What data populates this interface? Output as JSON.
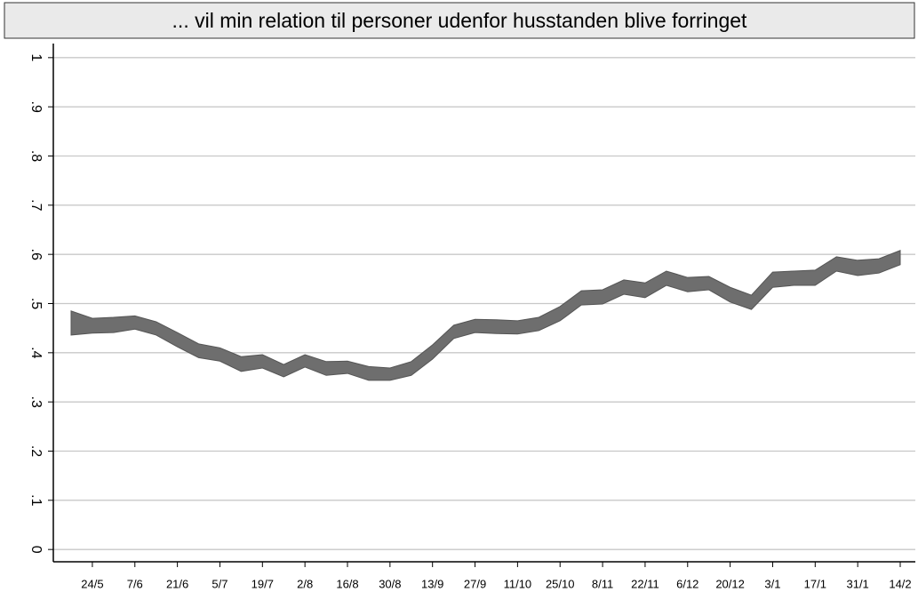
{
  "chart_data": {
    "type": "band",
    "title": "... vil min relation til personer udenfor husstanden blive forringet",
    "categories": [
      null,
      "24/5",
      null,
      "7/6",
      null,
      "21/6",
      null,
      "5/7",
      null,
      "19/7",
      null,
      "2/8",
      null,
      "16/8",
      null,
      "30/8",
      null,
      "13/9",
      null,
      "27/9",
      null,
      "11/10",
      null,
      "25/10",
      null,
      "8/11",
      null,
      "22/11",
      null,
      "6/12",
      null,
      "20/12",
      null,
      "3/1",
      null,
      "17/1",
      null,
      "31/1",
      null,
      "14/2"
    ],
    "series": [
      {
        "color": "#6e6e6e",
        "values": [
          0.436,
          0.44,
          0.441,
          0.448,
          0.436,
          0.412,
          0.39,
          0.383,
          0.362,
          0.369,
          0.351,
          0.371,
          0.354,
          0.358,
          0.344,
          0.344,
          0.354,
          0.387,
          0.429,
          0.441,
          0.439,
          0.438,
          0.445,
          0.465,
          0.497,
          0.499,
          0.519,
          0.512,
          0.537,
          0.524,
          0.528,
          0.503,
          0.488,
          0.533,
          0.537,
          0.537,
          0.566,
          0.557,
          0.562,
          0.579
        ]
      },
      {
        "color": "#6e6e6e",
        "values": [
          0.485,
          0.47,
          0.472,
          0.475,
          0.463,
          0.441,
          0.418,
          0.41,
          0.392,
          0.396,
          0.376,
          0.396,
          0.382,
          0.383,
          0.372,
          0.369,
          0.382,
          0.416,
          0.456,
          0.468,
          0.467,
          0.465,
          0.472,
          0.494,
          0.526,
          0.528,
          0.548,
          0.542,
          0.566,
          0.553,
          0.555,
          0.533,
          0.517,
          0.564,
          0.566,
          0.568,
          0.595,
          0.588,
          0.591,
          0.608
        ]
      }
    ],
    "ylim": [
      -0.025,
      1.025
    ],
    "yticks": [
      {
        "value": 0,
        "label": "0"
      },
      {
        "value": 0.1,
        "label": ".1"
      },
      {
        "value": 0.2,
        "label": ".2"
      },
      {
        "value": 0.3,
        "label": ".3"
      },
      {
        "value": 0.4,
        "label": ".4"
      },
      {
        "value": 0.5,
        "label": ".5"
      },
      {
        "value": 0.6,
        "label": ".6"
      },
      {
        "value": 0.7,
        "label": ".7"
      },
      {
        "value": 0.8,
        "label": ".8"
      },
      {
        "value": 0.9,
        "label": ".9"
      },
      {
        "value": 1,
        "label": "1"
      }
    ],
    "grid": true
  }
}
